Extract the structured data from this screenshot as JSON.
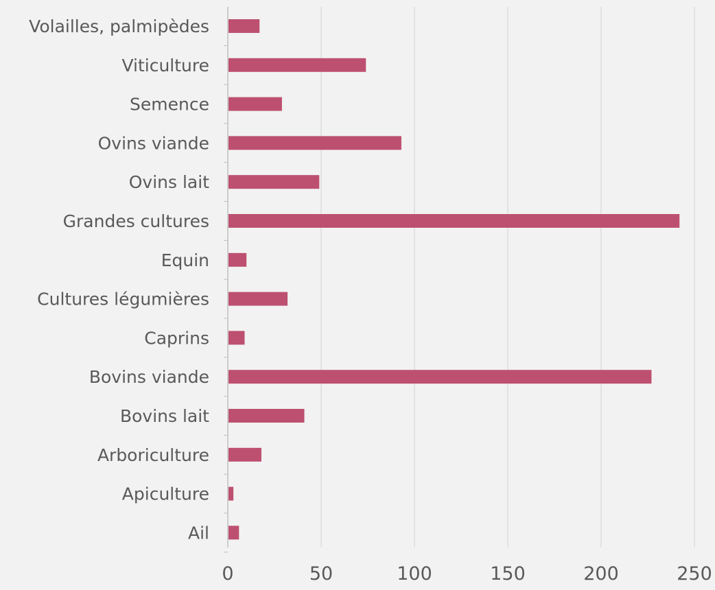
{
  "chart_data": {
    "type": "bar",
    "orientation": "horizontal",
    "categories": [
      "Volailles, palmipèdes",
      "Viticulture",
      "Semence",
      "Ovins viande",
      "Ovins lait",
      "Grandes cultures",
      "Equin",
      "Cultures légumières",
      "Caprins",
      "Bovins viande",
      "Bovins lait",
      "Arboriculture",
      "Apiculture",
      "Ail"
    ],
    "values": [
      17,
      74,
      29,
      93,
      49,
      242,
      10,
      32,
      9,
      227,
      41,
      18,
      3,
      6
    ],
    "xlim": [
      0,
      250
    ],
    "xticks": [
      0,
      50,
      100,
      150,
      200,
      250
    ],
    "grid": "vertical",
    "legend": "none",
    "title": "",
    "xlabel": "",
    "ylabel": "",
    "colors": {
      "bar": "#bd5070",
      "grid": "#d9d9d9",
      "axis": "#bfbfbf",
      "text": "#595959",
      "background": "#f2f2f2"
    }
  }
}
